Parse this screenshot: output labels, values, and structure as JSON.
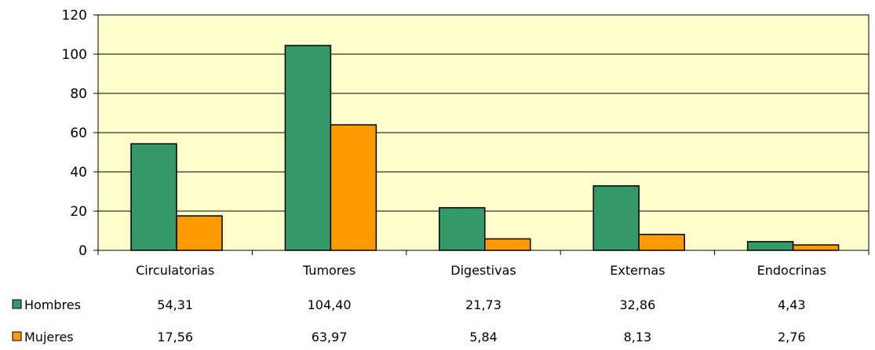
{
  "chart_data": {
    "type": "bar",
    "categories": [
      "Circulatorias",
      "Tumores",
      "Digestivas",
      "Externas",
      "Endocrinas"
    ],
    "series": [
      {
        "name": "Hombres",
        "color": "#339966",
        "values": [
          54.31,
          104.4,
          21.73,
          32.86,
          4.43
        ],
        "labels": [
          "54,31",
          "104,40",
          "21,73",
          "32,86",
          "4,43"
        ]
      },
      {
        "name": "Mujeres",
        "color": "#ff9900",
        "values": [
          17.56,
          63.97,
          5.84,
          8.13,
          2.76
        ],
        "labels": [
          "17,56",
          "63,97",
          "5,84",
          "8,13",
          "2,76"
        ]
      }
    ],
    "ylim": [
      0,
      120
    ],
    "yticks": [
      0,
      20,
      40,
      60,
      80,
      100,
      120
    ],
    "grid": true,
    "plot_background": "#ffffcc",
    "legend": "data-table-below"
  }
}
